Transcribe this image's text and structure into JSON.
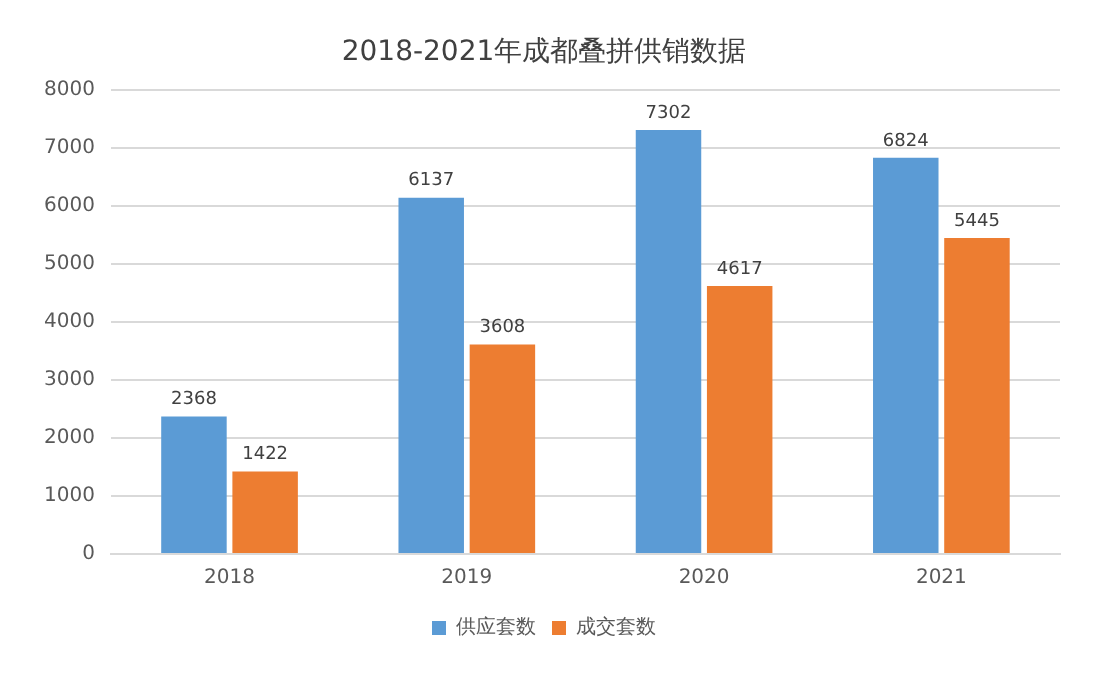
{
  "chart_data": {
    "type": "bar",
    "title": "2018-2021年成都叠拼供销数据",
    "categories": [
      "2018",
      "2019",
      "2020",
      "2021"
    ],
    "series": [
      {
        "name": "供应套数",
        "color": "#5b9bd5",
        "values": [
          2368,
          6137,
          7302,
          6824
        ]
      },
      {
        "name": "成交套数",
        "color": "#ed7d31",
        "values": [
          1422,
          3608,
          4617,
          5445
        ]
      }
    ],
    "ylim": [
      0,
      8000
    ],
    "yticks": [
      0,
      1000,
      2000,
      3000,
      4000,
      5000,
      6000,
      7000,
      8000
    ],
    "grid": "y",
    "legend": "bottom",
    "data_labels": true
  }
}
